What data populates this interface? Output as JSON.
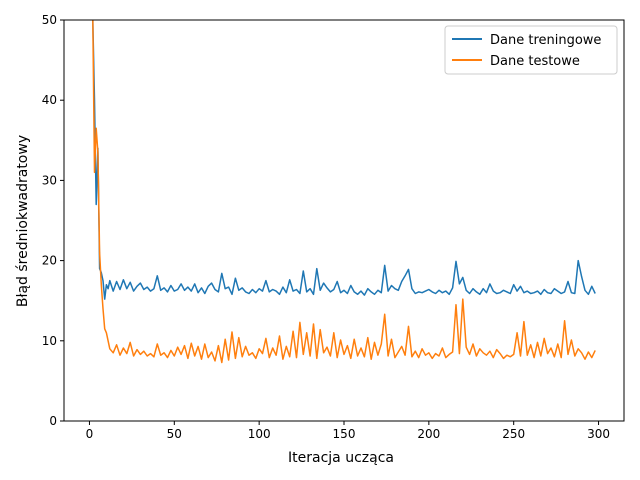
{
  "chart_data": {
    "type": "line",
    "title": "",
    "xlabel": "Iteracja ucząca",
    "ylabel": "Błąd średniokwadratowy",
    "xlim": [
      -15,
      315
    ],
    "ylim": [
      0,
      50
    ],
    "xticks": [
      0,
      50,
      100,
      150,
      200,
      250,
      300
    ],
    "yticks": [
      0,
      10,
      20,
      30,
      40,
      50
    ],
    "grid": false,
    "legend_position": "top-right",
    "series": [
      {
        "name": "Dane treningowe",
        "color": "#1f77b4",
        "x": [
          2,
          3,
          4,
          5,
          6,
          7,
          8,
          9,
          10,
          11,
          12,
          14,
          16,
          18,
          20,
          22,
          24,
          26,
          28,
          30,
          32,
          34,
          36,
          38,
          40,
          42,
          44,
          46,
          48,
          50,
          52,
          54,
          56,
          58,
          60,
          62,
          64,
          66,
          68,
          70,
          72,
          74,
          76,
          78,
          80,
          82,
          84,
          86,
          88,
          90,
          92,
          94,
          96,
          98,
          100,
          102,
          104,
          106,
          108,
          110,
          112,
          114,
          116,
          118,
          120,
          122,
          124,
          126,
          128,
          130,
          132,
          134,
          136,
          138,
          140,
          142,
          144,
          146,
          148,
          150,
          152,
          154,
          156,
          158,
          160,
          162,
          164,
          166,
          168,
          170,
          172,
          174,
          176,
          178,
          180,
          182,
          184,
          186,
          188,
          190,
          192,
          194,
          196,
          198,
          200,
          202,
          204,
          206,
          208,
          210,
          212,
          214,
          216,
          218,
          220,
          222,
          224,
          226,
          228,
          230,
          232,
          234,
          236,
          238,
          240,
          242,
          244,
          246,
          248,
          250,
          252,
          254,
          256,
          258,
          260,
          262,
          264,
          266,
          268,
          270,
          272,
          274,
          276,
          278,
          280,
          282,
          284,
          286,
          288,
          290,
          292,
          294,
          296,
          298
        ],
        "y": [
          50,
          40,
          27,
          34,
          19,
          18.5,
          17.5,
          15.2,
          17,
          16.5,
          17.5,
          16.2,
          17.4,
          16.4,
          17.6,
          16.5,
          17.3,
          16.2,
          16.8,
          17.2,
          16.4,
          16.7,
          16.2,
          16.5,
          18.1,
          16.3,
          16.6,
          16.1,
          16.9,
          16.2,
          16.4,
          17.1,
          16.3,
          16.7,
          16.2,
          17.1,
          16.0,
          16.6,
          15.9,
          16.8,
          17.2,
          16.4,
          16.1,
          18.4,
          16.5,
          16.7,
          15.8,
          17.8,
          16.3,
          16.6,
          16.1,
          15.9,
          16.4,
          16.0,
          16.5,
          16.2,
          17.5,
          16.1,
          16.4,
          16.2,
          15.8,
          16.7,
          16.0,
          17.6,
          16.2,
          16.4,
          15.9,
          18.7,
          16.1,
          16.5,
          15.8,
          19.0,
          16.3,
          17.2,
          16.6,
          16.1,
          16.4,
          17.4,
          16.0,
          16.3,
          15.9,
          16.9,
          16.1,
          15.8,
          16.2,
          15.7,
          16.5,
          16.1,
          15.8,
          16.3,
          16.0,
          19.4,
          16.2,
          16.9,
          16.5,
          16.3,
          17.4,
          18.1,
          18.9,
          16.5,
          15.9,
          16.1,
          16.0,
          16.2,
          16.4,
          16.1,
          15.9,
          16.3,
          16.0,
          16.2,
          15.8,
          16.6,
          19.9,
          17.1,
          17.9,
          16.3,
          15.9,
          16.5,
          16.1,
          15.8,
          16.5,
          16.0,
          17.1,
          16.2,
          15.9,
          16.0,
          16.3,
          16.1,
          15.9,
          17.0,
          16.2,
          16.8,
          16.0,
          16.2,
          15.9,
          16.0,
          16.2,
          15.8,
          16.4,
          16.0,
          15.9,
          16.5,
          16.2,
          15.9,
          16.1,
          17.4,
          16.0,
          15.9,
          20.0,
          18.0,
          16.3,
          15.8,
          16.8,
          15.9
        ]
      },
      {
        "name": "Dane testowe",
        "color": "#ff7f0e",
        "x": [
          2,
          3,
          4,
          5,
          6,
          7,
          8,
          9,
          10,
          11,
          12,
          14,
          16,
          18,
          20,
          22,
          24,
          26,
          28,
          30,
          32,
          34,
          36,
          38,
          40,
          42,
          44,
          46,
          48,
          50,
          52,
          54,
          56,
          58,
          60,
          62,
          64,
          66,
          68,
          70,
          72,
          74,
          76,
          78,
          80,
          82,
          84,
          86,
          88,
          90,
          92,
          94,
          96,
          98,
          100,
          102,
          104,
          106,
          108,
          110,
          112,
          114,
          116,
          118,
          120,
          122,
          124,
          126,
          128,
          130,
          132,
          134,
          136,
          138,
          140,
          142,
          144,
          146,
          148,
          150,
          152,
          154,
          156,
          158,
          160,
          162,
          164,
          166,
          168,
          170,
          172,
          174,
          176,
          178,
          180,
          182,
          184,
          186,
          188,
          190,
          192,
          194,
          196,
          198,
          200,
          202,
          204,
          206,
          208,
          210,
          212,
          214,
          216,
          218,
          220,
          222,
          224,
          226,
          228,
          230,
          232,
          234,
          236,
          238,
          240,
          242,
          244,
          246,
          248,
          250,
          252,
          254,
          256,
          258,
          260,
          262,
          264,
          266,
          268,
          270,
          272,
          274,
          276,
          278,
          280,
          282,
          284,
          286,
          288,
          290,
          292,
          294,
          296,
          298
        ],
        "y": [
          50,
          31,
          36.5,
          33.5,
          21,
          17,
          14,
          11.5,
          11,
          10,
          9,
          8.5,
          9.5,
          8.2,
          9.1,
          8.4,
          9.8,
          8.1,
          8.9,
          8.3,
          8.7,
          8.1,
          8.4,
          8.0,
          9.6,
          8.2,
          8.5,
          7.9,
          8.8,
          8.1,
          9.2,
          8.3,
          9.4,
          7.8,
          9.7,
          8.1,
          9.3,
          7.7,
          9.6,
          7.9,
          8.6,
          7.5,
          9.4,
          7.3,
          10.2,
          7.6,
          11.1,
          7.8,
          10.4,
          8.0,
          9.3,
          8.2,
          8.5,
          7.8,
          9.0,
          8.4,
          10.3,
          7.9,
          9.1,
          8.2,
          10.6,
          7.7,
          9.3,
          8.0,
          11.2,
          7.9,
          12.3,
          8.3,
          11.0,
          8.1,
          12.1,
          7.8,
          11.4,
          8.5,
          9.2,
          8.1,
          11.0,
          7.9,
          10.1,
          8.3,
          9.4,
          7.8,
          10.2,
          8.1,
          9.1,
          8.0,
          10.4,
          7.7,
          9.8,
          8.2,
          9.6,
          13.3,
          8.1,
          10.2,
          7.9,
          8.6,
          9.3,
          8.2,
          11.8,
          8.0,
          8.7,
          7.9,
          9.0,
          8.2,
          8.5,
          7.8,
          8.4,
          8.1,
          9.1,
          7.9,
          8.3,
          8.6,
          14.5,
          8.4,
          15.2,
          9.2,
          8.3,
          9.6,
          8.1,
          9.0,
          8.5,
          8.2,
          8.7,
          7.9,
          8.9,
          8.4,
          7.8,
          8.2,
          8.0,
          8.3,
          11.0,
          8.1,
          12.4,
          8.2,
          9.5,
          7.9,
          9.8,
          8.1,
          10.3,
          8.4,
          9.1,
          8.0,
          9.6,
          7.9,
          12.5,
          8.3,
          10.1,
          8.1,
          9.0,
          8.5,
          7.7,
          8.6,
          7.9,
          8.8
        ]
      }
    ]
  }
}
